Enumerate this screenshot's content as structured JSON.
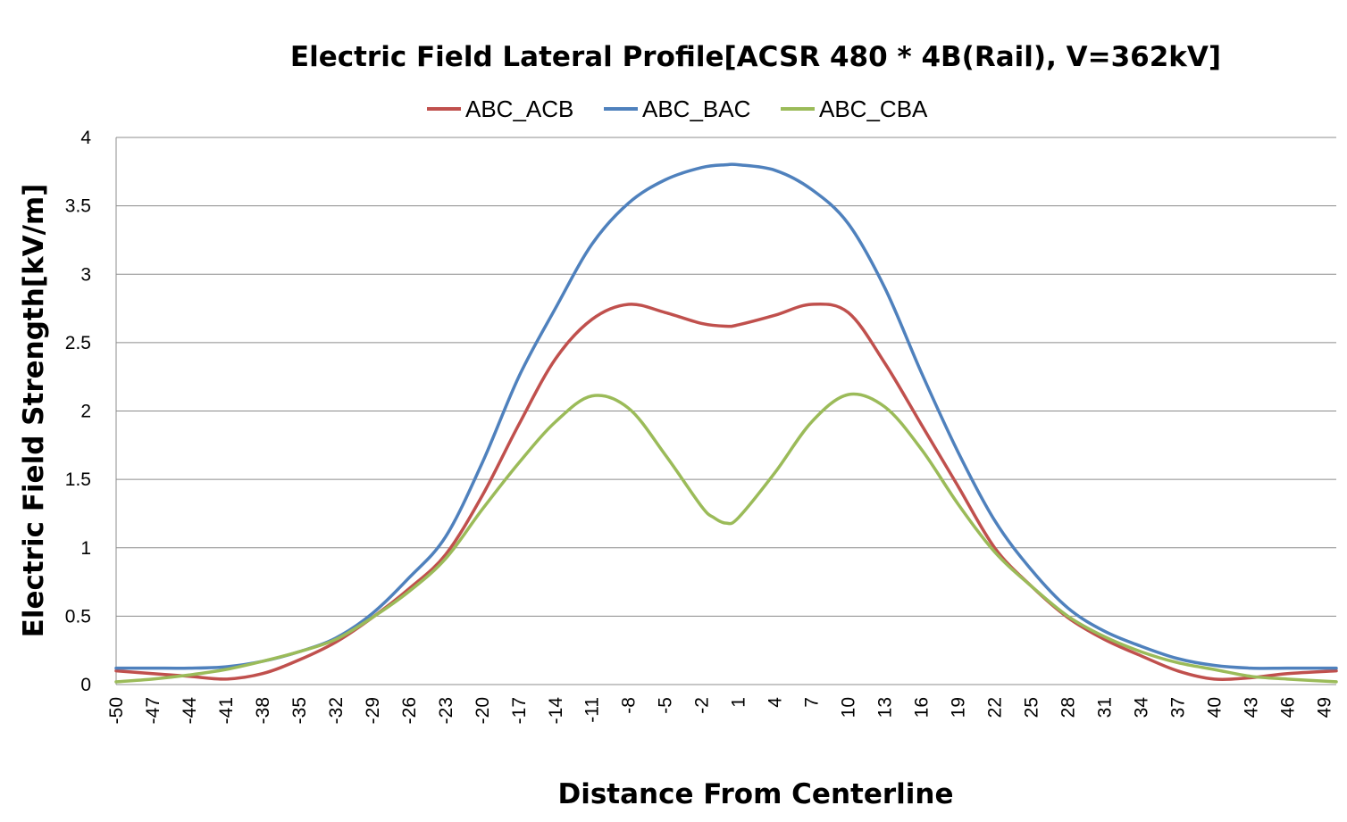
{
  "chart_data": {
    "type": "line",
    "title": "Electric Field Lateral Profile[ACSR 480 * 4B(Rail), V=362kV]",
    "xlabel": "Distance From Centerline",
    "ylabel": "Electric Field Strength[kV/m]",
    "ylim": [
      0,
      4
    ],
    "yticks": [
      "0",
      "0.5",
      "1",
      "1.5",
      "2",
      "2.5",
      "3",
      "3.5",
      "4"
    ],
    "xticks": [
      "-50",
      "-47",
      "-44",
      "-41",
      "-38",
      "-35",
      "-32",
      "-29",
      "-26",
      "-23",
      "-20",
      "-17",
      "-14",
      "-11",
      "-8",
      "-5",
      "-2",
      "1",
      "4",
      "7",
      "10",
      "13",
      "16",
      "19",
      "22",
      "25",
      "28",
      "31",
      "34",
      "37",
      "40",
      "43",
      "46",
      "49"
    ],
    "xlim": [
      -50,
      50
    ],
    "grid": "horizontal",
    "legend_position": "top",
    "series": [
      {
        "name": "ABC_ACB",
        "color": "#C0504D",
        "x": [
          -50,
          -47,
          -44,
          -41,
          -38,
          -35,
          -32,
          -29,
          -26,
          -23,
          -20,
          -17,
          -14,
          -11,
          -8,
          -5,
          -2,
          0,
          1,
          4,
          7,
          10,
          13,
          16,
          19,
          22,
          25,
          28,
          31,
          34,
          37,
          40,
          43,
          46,
          50
        ],
        "y": [
          0.1,
          0.08,
          0.06,
          0.04,
          0.08,
          0.18,
          0.31,
          0.49,
          0.7,
          0.95,
          1.38,
          1.9,
          2.38,
          2.67,
          2.78,
          2.72,
          2.64,
          2.62,
          2.63,
          2.7,
          2.78,
          2.72,
          2.35,
          1.9,
          1.45,
          1.0,
          0.72,
          0.49,
          0.33,
          0.21,
          0.1,
          0.04,
          0.05,
          0.08,
          0.1
        ]
      },
      {
        "name": "ABC_BAC",
        "color": "#4F81BD",
        "x": [
          -50,
          -47,
          -44,
          -41,
          -38,
          -35,
          -32,
          -29,
          -26,
          -23,
          -20,
          -17,
          -14,
          -11,
          -8,
          -5,
          -2,
          0,
          1,
          4,
          7,
          10,
          13,
          16,
          19,
          22,
          25,
          28,
          31,
          34,
          37,
          40,
          43,
          46,
          50
        ],
        "y": [
          0.12,
          0.12,
          0.12,
          0.13,
          0.17,
          0.24,
          0.34,
          0.52,
          0.78,
          1.08,
          1.62,
          2.25,
          2.75,
          3.22,
          3.52,
          3.69,
          3.78,
          3.8,
          3.8,
          3.76,
          3.62,
          3.37,
          2.9,
          2.28,
          1.7,
          1.2,
          0.84,
          0.56,
          0.39,
          0.28,
          0.19,
          0.14,
          0.12,
          0.12,
          0.12
        ]
      },
      {
        "name": "ABC_CBA",
        "color": "#9BBB59",
        "x": [
          -50,
          -47,
          -44,
          -41,
          -38,
          -35,
          -32,
          -29,
          -26,
          -23,
          -20,
          -17,
          -14,
          -11,
          -8,
          -5,
          -2,
          -1,
          0,
          1,
          4,
          7,
          10,
          13,
          16,
          19,
          22,
          25,
          28,
          31,
          34,
          37,
          40,
          43,
          46,
          50
        ],
        "y": [
          0.02,
          0.04,
          0.07,
          0.11,
          0.17,
          0.24,
          0.33,
          0.49,
          0.68,
          0.92,
          1.28,
          1.62,
          1.92,
          2.11,
          2.02,
          1.68,
          1.3,
          1.22,
          1.18,
          1.22,
          1.55,
          1.92,
          2.12,
          2.03,
          1.72,
          1.32,
          0.97,
          0.72,
          0.5,
          0.35,
          0.24,
          0.16,
          0.11,
          0.06,
          0.04,
          0.02
        ]
      }
    ]
  }
}
